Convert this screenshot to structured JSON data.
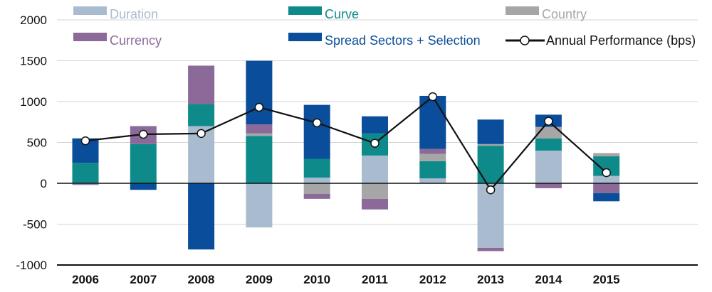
{
  "chart_data": {
    "type": "bar",
    "title": "",
    "xlabel": "",
    "ylabel": "",
    "ylim": [
      -1000,
      2000
    ],
    "yticks": [
      2000,
      1500,
      1000,
      500,
      0,
      -500,
      -1000
    ],
    "ytick_labels": [
      "2000",
      "1500",
      "1000",
      "500",
      "0",
      "-500",
      "-1000"
    ],
    "categories": [
      "2006",
      "2007",
      "2008",
      "2009",
      "2010",
      "2011",
      "2012",
      "2013",
      "2014",
      "2015"
    ],
    "grid": true,
    "legend_position": "top",
    "series": [
      {
        "name": "Duration",
        "color": "#a9bccf",
        "values": [
          -10,
          0,
          700,
          -540,
          70,
          340,
          60,
          -790,
          400,
          90
        ]
      },
      {
        "name": "Curve",
        "color": "#0e8a8a",
        "values": [
          250,
          480,
          270,
          580,
          230,
          270,
          210,
          460,
          150,
          240
        ]
      },
      {
        "name": "Country",
        "color": "#a6a6a6",
        "values": [
          0,
          0,
          0,
          30,
          -130,
          -190,
          90,
          20,
          140,
          40
        ]
      },
      {
        "name": "Currency",
        "color": "#8b6a99",
        "values": [
          -10,
          220,
          470,
          110,
          -60,
          -130,
          60,
          -40,
          -60,
          -120
        ]
      },
      {
        "name": "Spread Sectors + Selection",
        "color": "#0a4d9a",
        "values": [
          300,
          -80,
          -810,
          780,
          660,
          210,
          650,
          300,
          150,
          -100
        ]
      }
    ],
    "line_series": {
      "name": "Annual Performance (bps)",
      "color": "#111111",
      "values": [
        520,
        600,
        610,
        930,
        740,
        490,
        1060,
        -80,
        760,
        130
      ]
    }
  }
}
